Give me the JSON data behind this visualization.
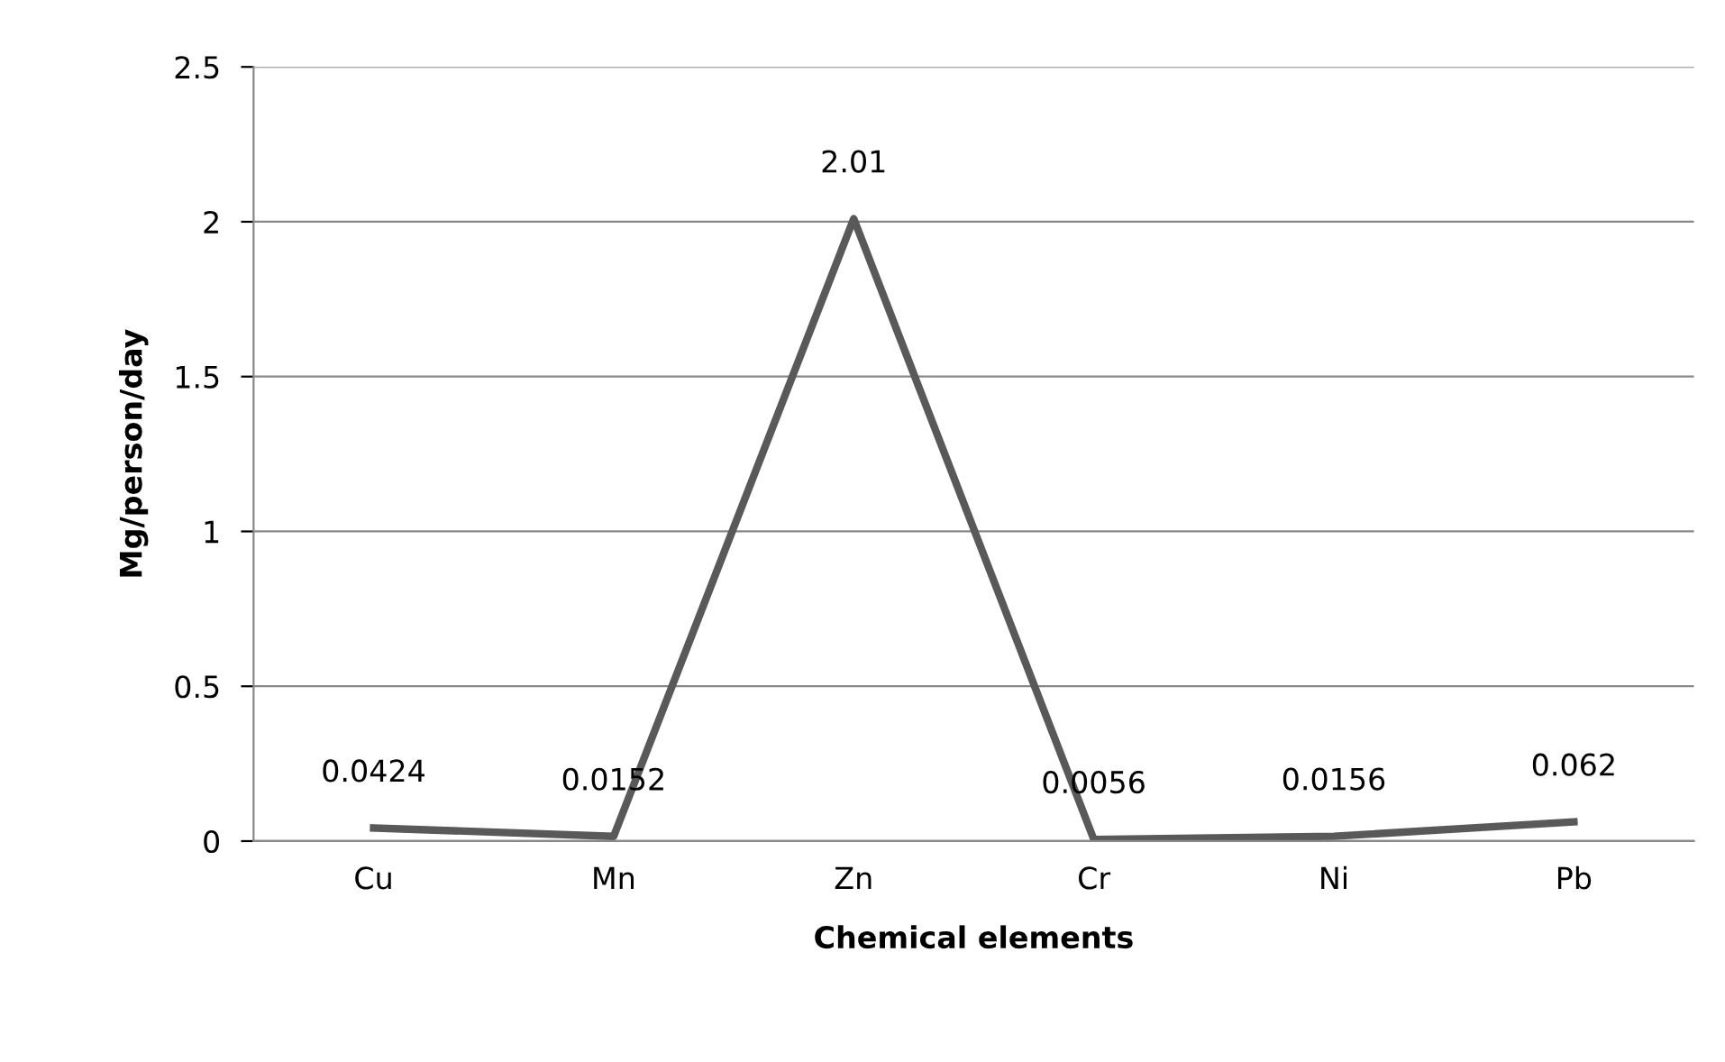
{
  "chart_data": {
    "type": "line",
    "xlabel": "Chemical elements",
    "ylabel": "Mg/person/day",
    "categories": [
      "Cu",
      "Mn",
      "Zn",
      "Cr",
      "Ni",
      "Pb"
    ],
    "series": [
      {
        "color": "#595959",
        "values": [
          0.0424,
          0.0152,
          2.01,
          0.0056,
          0.0156,
          0.062
        ]
      }
    ],
    "ylim": [
      0,
      2.5
    ],
    "yticks": [
      0,
      0.5,
      1,
      1.5,
      2,
      2.5
    ],
    "grid": "y",
    "data_labels": true,
    "marker": "none",
    "line_style": "solid",
    "legend": false
  }
}
